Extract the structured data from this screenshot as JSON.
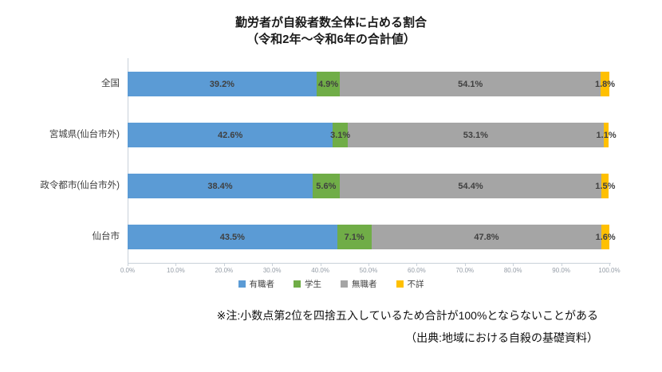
{
  "title": {
    "line1": "勤労者が自殺者数全体に占める割合",
    "line2": "（令和2年～令和6年の合計値）"
  },
  "chart_data": {
    "type": "bar",
    "orientation": "horizontal",
    "stacked": true,
    "title": "勤労者が自殺者数全体に占める割合（令和2年～令和6年の合計値）",
    "categories": [
      "全国",
      "宮城県(仙台市外)",
      "政令都市(仙台市外)",
      "仙台市"
    ],
    "series": [
      {
        "name": "有職者",
        "color": "#5B9BD5",
        "values": [
          39.2,
          42.6,
          38.4,
          43.5
        ]
      },
      {
        "name": "学生",
        "color": "#70AD47",
        "values": [
          4.9,
          3.1,
          5.6,
          7.1
        ]
      },
      {
        "name": "無職者",
        "color": "#A5A5A5",
        "values": [
          54.1,
          53.1,
          54.4,
          47.8
        ]
      },
      {
        "name": "不詳",
        "color": "#FFC000",
        "values": [
          1.8,
          1.1,
          1.5,
          1.6
        ]
      }
    ],
    "value_suffix": "%",
    "xlim": [
      0,
      100
    ],
    "x_ticks": [
      "0.0%",
      "10.0%",
      "20.0%",
      "30.0%",
      "40.0%",
      "50.0%",
      "60.0%",
      "70.0%",
      "80.0%",
      "90.0%",
      "100.0%"
    ],
    "grid": false,
    "legend_position": "bottom",
    "axis_color": "#c9d1d9",
    "label_color": "#404040"
  },
  "notes": {
    "line1": "※注:小数点第2位を四捨五入しているため合計が100%とならないことがある",
    "line2": "（出典:地域における自殺の基礎資料）"
  }
}
